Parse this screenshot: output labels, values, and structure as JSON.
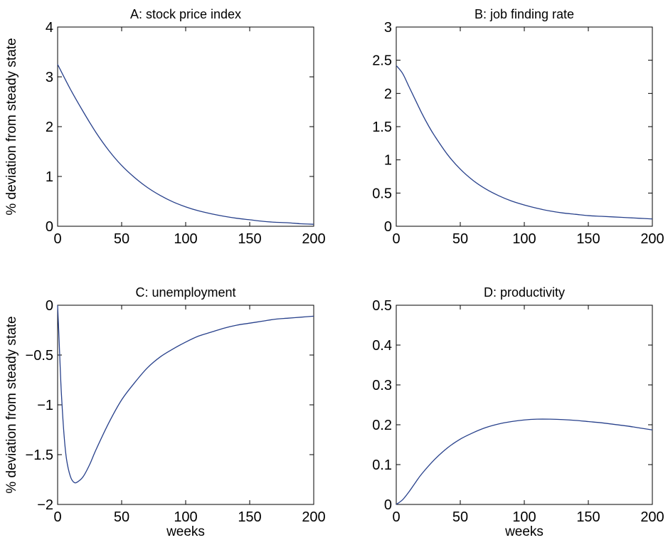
{
  "chart_data": [
    {
      "type": "line",
      "title": "A: stock price index",
      "xlabel": "",
      "ylabel": "% deviation from steady state",
      "xlim": [
        0,
        200
      ],
      "ylim": [
        0,
        4
      ],
      "xticks": [
        0,
        50,
        100,
        150,
        200
      ],
      "yticks": [
        0,
        1,
        2,
        3,
        4
      ],
      "xtick_labels": [
        "0",
        "50",
        "100",
        "150",
        "200"
      ],
      "ytick_labels": [
        "0",
        "1",
        "2",
        "3",
        "4"
      ],
      "grid": false,
      "series": [
        {
          "color": "#27408b",
          "x": [
            0,
            10,
            20,
            30,
            40,
            50,
            60,
            70,
            80,
            90,
            100,
            110,
            120,
            130,
            140,
            150,
            160,
            170,
            180,
            190,
            200
          ],
          "y": [
            3.25,
            2.75,
            2.3,
            1.88,
            1.52,
            1.22,
            0.98,
            0.78,
            0.62,
            0.49,
            0.39,
            0.31,
            0.25,
            0.2,
            0.16,
            0.13,
            0.1,
            0.08,
            0.07,
            0.05,
            0.04
          ]
        }
      ]
    },
    {
      "type": "line",
      "title": "B: job finding rate",
      "xlabel": "",
      "ylabel": "",
      "xlim": [
        0,
        200
      ],
      "ylim": [
        0,
        3
      ],
      "xticks": [
        0,
        50,
        100,
        150,
        200
      ],
      "yticks": [
        0,
        0.5,
        1,
        1.5,
        2,
        2.5,
        3
      ],
      "xtick_labels": [
        "0",
        "50",
        "100",
        "150",
        "200"
      ],
      "ytick_labels": [
        "0",
        "0.5",
        "1",
        "1.5",
        "2",
        "2.5",
        "3"
      ],
      "grid": false,
      "series": [
        {
          "color": "#27408b",
          "x": [
            0,
            5,
            10,
            15,
            20,
            25,
            30,
            40,
            50,
            60,
            70,
            80,
            90,
            100,
            110,
            120,
            130,
            140,
            150,
            160,
            170,
            180,
            190,
            200
          ],
          "y": [
            2.42,
            2.3,
            2.1,
            1.9,
            1.7,
            1.52,
            1.36,
            1.08,
            0.86,
            0.69,
            0.56,
            0.46,
            0.38,
            0.32,
            0.27,
            0.23,
            0.2,
            0.18,
            0.16,
            0.15,
            0.14,
            0.13,
            0.12,
            0.11
          ]
        }
      ]
    },
    {
      "type": "line",
      "title": "C: unemployment",
      "xlabel": "weeks",
      "ylabel": "% deviation from steady state",
      "xlim": [
        0,
        200
      ],
      "ylim": [
        -2,
        0
      ],
      "xticks": [
        0,
        50,
        100,
        150,
        200
      ],
      "yticks": [
        -2,
        -1.5,
        -1,
        -0.5,
        0
      ],
      "xtick_labels": [
        "0",
        "50",
        "100",
        "150",
        "200"
      ],
      "ytick_labels": [
        "−2",
        "−1.5",
        "−1",
        "−0.5",
        "0"
      ],
      "grid": false,
      "series": [
        {
          "color": "#27408b",
          "x": [
            0,
            1,
            2,
            3,
            5,
            7,
            10,
            13,
            16,
            20,
            25,
            30,
            40,
            50,
            60,
            70,
            80,
            90,
            100,
            110,
            120,
            130,
            140,
            150,
            160,
            170,
            180,
            190,
            200
          ],
          "y": [
            0,
            -0.3,
            -0.62,
            -0.9,
            -1.3,
            -1.55,
            -1.72,
            -1.78,
            -1.77,
            -1.72,
            -1.6,
            -1.45,
            -1.18,
            -0.95,
            -0.78,
            -0.63,
            -0.52,
            -0.44,
            -0.37,
            -0.31,
            -0.27,
            -0.23,
            -0.2,
            -0.18,
            -0.16,
            -0.14,
            -0.13,
            -0.12,
            -0.11
          ]
        }
      ]
    },
    {
      "type": "line",
      "title": "D: productivity",
      "xlabel": "weeks",
      "ylabel": "",
      "xlim": [
        0,
        200
      ],
      "ylim": [
        0,
        0.5
      ],
      "xticks": [
        0,
        50,
        100,
        150,
        200
      ],
      "yticks": [
        0,
        0.1,
        0.2,
        0.3,
        0.4,
        0.5
      ],
      "xtick_labels": [
        "0",
        "50",
        "100",
        "150",
        "200"
      ],
      "ytick_labels": [
        "0",
        "0.1",
        "0.2",
        "0.3",
        "0.4",
        "0.5"
      ],
      "grid": false,
      "series": [
        {
          "color": "#27408b",
          "x": [
            0,
            5,
            10,
            15,
            20,
            30,
            40,
            50,
            60,
            70,
            80,
            90,
            100,
            110,
            120,
            130,
            140,
            150,
            160,
            170,
            180,
            190,
            200
          ],
          "y": [
            0.0,
            0.012,
            0.032,
            0.055,
            0.077,
            0.113,
            0.142,
            0.164,
            0.18,
            0.193,
            0.202,
            0.208,
            0.212,
            0.214,
            0.214,
            0.213,
            0.211,
            0.208,
            0.205,
            0.201,
            0.197,
            0.192,
            0.187
          ]
        }
      ]
    }
  ]
}
